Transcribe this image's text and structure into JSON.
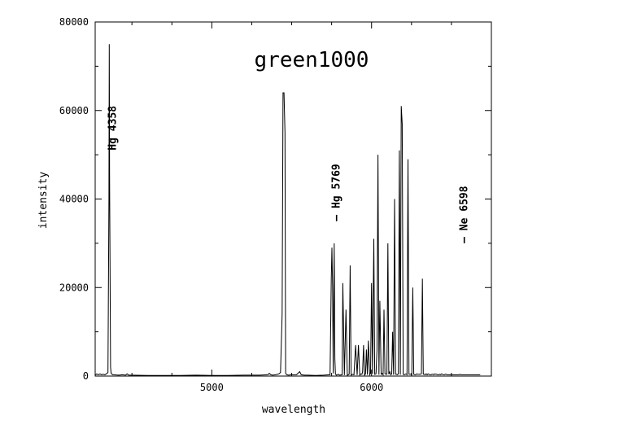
{
  "chart_data": {
    "type": "line",
    "title": "green1000",
    "xlabel": "wavelength",
    "ylabel": "intensity",
    "xlim": [
      4270,
      6750
    ],
    "ylim": [
      0,
      80000
    ],
    "xticks": [
      5000,
      6000
    ],
    "yticks": [
      0,
      20000,
      40000,
      60000,
      80000
    ],
    "xtick_labels": [
      "5000",
      "6000"
    ],
    "ytick_labels": [
      "0",
      "20000",
      "40000",
      "60000",
      "80000"
    ],
    "grid": false,
    "annotations": [
      {
        "text": "Hg 4358",
        "x": 4400,
        "y": 51000
      },
      {
        "text": "– Hg 5769",
        "x": 5800,
        "y": 35000
      },
      {
        "text": "– Ne 6598",
        "x": 6600,
        "y": 30000
      }
    ],
    "series": [
      {
        "x": [
          4270,
          4280,
          4290,
          4300,
          4310,
          4320,
          4330,
          4340,
          4350,
          4356,
          4358,
          4360,
          4366,
          4370,
          4380,
          4390,
          4400,
          4420,
          4440,
          4460,
          4470,
          4480,
          4500,
          4600,
          4700,
          4800,
          4900,
          5000,
          5100,
          5200,
          5300,
          5350,
          5360,
          5370,
          5380,
          5400,
          5420,
          5430,
          5440,
          5446,
          5452,
          5458,
          5462,
          5470,
          5480,
          5500,
          5530,
          5550,
          5560,
          5580,
          5600,
          5650,
          5700,
          5740,
          5748,
          5752,
          5756,
          5760,
          5766,
          5770,
          5774,
          5780,
          5786,
          5792,
          5800,
          5816,
          5820,
          5830,
          5840,
          5848,
          5856,
          5860,
          5866,
          5872,
          5880,
          5890,
          5900,
          5910,
          5918,
          5926,
          5934,
          5940,
          5944,
          5950,
          5956,
          5962,
          5968,
          5974,
          5980,
          5988,
          5994,
          6000,
          6006,
          6014,
          6020,
          6028,
          6034,
          6040,
          6046,
          6052,
          6060,
          6066,
          6072,
          6078,
          6084,
          6090,
          6096,
          6102,
          6108,
          6114,
          6120,
          6126,
          6132,
          6138,
          6144,
          6150,
          6156,
          6162,
          6168,
          6174,
          6180,
          6186,
          6192,
          6198,
          6204,
          6210,
          6216,
          6222,
          6228,
          6234,
          6240,
          6246,
          6252,
          6258,
          6264,
          6270,
          6276,
          6282,
          6288,
          6294,
          6300,
          6306,
          6312,
          6318,
          6324,
          6330,
          6336,
          6342,
          6348,
          6354,
          6360,
          6366,
          6372,
          6378,
          6384,
          6390,
          6396,
          6402,
          6408,
          6414,
          6420,
          6426,
          6432,
          6438,
          6444,
          6450,
          6456,
          6462,
          6468,
          6474,
          6480,
          6486,
          6490,
          6494,
          6498,
          6502,
          6506,
          6512,
          6518,
          6524,
          6530,
          6536,
          6542,
          6548,
          6554,
          6560,
          6566,
          6572,
          6578,
          6584,
          6590,
          6596,
          6600,
          6604,
          6608,
          6614,
          6620,
          6626,
          6632,
          6640,
          6650,
          6660,
          6670,
          6680
        ],
        "y": [
          200,
          500,
          300,
          500,
          300,
          400,
          300,
          500,
          800,
          40000,
          75000,
          45000,
          2000,
          600,
          300,
          300,
          250,
          200,
          300,
          200,
          500,
          200,
          200,
          150,
          150,
          150,
          200,
          150,
          150,
          200,
          200,
          300,
          600,
          300,
          200,
          300,
          500,
          800,
          14000,
          64000,
          64000,
          55000,
          600,
          300,
          200,
          300,
          300,
          1000,
          300,
          200,
          200,
          150,
          200,
          300,
          22000,
          29000,
          20000,
          600,
          30000,
          4000,
          500,
          200,
          300,
          400,
          200,
          300,
          21000,
          200,
          15000,
          200,
          300,
          400,
          25000,
          200,
          400,
          300,
          7000,
          200,
          7000,
          200,
          500,
          400,
          1000,
          7000,
          200,
          500,
          6000,
          300,
          8000,
          300,
          600,
          21000,
          500,
          31000,
          400,
          500,
          6000,
          50000,
          300,
          17000,
          400,
          600,
          300,
          15000,
          500,
          400,
          400,
          30000,
          400,
          1000,
          300,
          500,
          10000,
          300,
          40000,
          400,
          400,
          300,
          500,
          51000,
          300,
          61000,
          57000,
          400,
          300,
          400,
          500,
          300,
          49000,
          400,
          400,
          400,
          300,
          20000,
          400,
          300,
          300,
          500,
          400,
          400,
          400,
          400,
          500,
          22000,
          400,
          400,
          300,
          500,
          300,
          500,
          400,
          300,
          300,
          400,
          400,
          300,
          500,
          400,
          400,
          300,
          300,
          400,
          300,
          500,
          400,
          300,
          300,
          400,
          400,
          300,
          300,
          300,
          300,
          300,
          300,
          300,
          300,
          300,
          300,
          300,
          300,
          300,
          300,
          300,
          400,
          300,
          300,
          300,
          300,
          300,
          300,
          300,
          300,
          300,
          300,
          300,
          300,
          300,
          300,
          300,
          300,
          300,
          300,
          300
        ]
      }
    ]
  }
}
